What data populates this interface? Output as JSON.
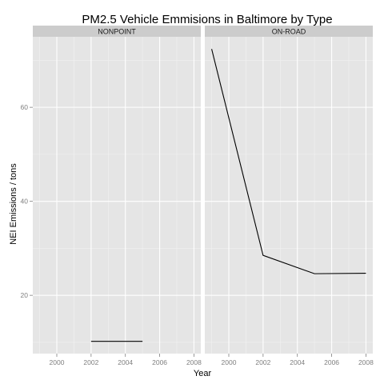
{
  "chart_data": {
    "type": "line",
    "title": "PM2.5 Vehicle Emmisions in Baltimore by Type",
    "xlabel": "Year",
    "ylabel": "NEI Emissions / tons",
    "xlim": [
      1998.6,
      2008.4
    ],
    "ylim": [
      7.6,
      75.0
    ],
    "x_ticks": [
      2000,
      2002,
      2004,
      2006,
      2008
    ],
    "y_ticks": [
      20,
      40,
      60
    ],
    "grid": true,
    "legend": "none",
    "panel_background": "#e5e5e5",
    "strip_background": "#cccccc",
    "line_color": "#000000",
    "facets": [
      {
        "label": "NONPOINT",
        "series": [
          {
            "x": [
              2002,
              2005
            ],
            "y": [
              10.2,
              10.2
            ]
          }
        ]
      },
      {
        "label": "ON-ROAD",
        "series": [
          {
            "x": [
              1999,
              2002,
              2005,
              2008
            ],
            "y": [
              72.4,
              28.5,
              24.6,
              24.7
            ]
          }
        ]
      }
    ]
  }
}
